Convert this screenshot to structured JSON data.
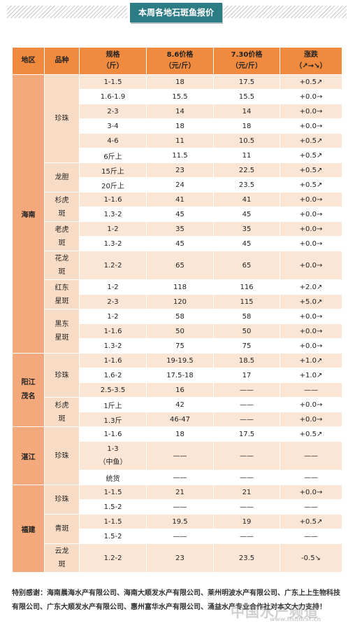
{
  "header": {
    "title": "本周各地石斑鱼报价"
  },
  "table": {
    "columns": [
      {
        "label": "地区"
      },
      {
        "label": "品种"
      },
      {
        "label": "规格\n（斤）"
      },
      {
        "label": "8.6价格\n（元/斤）"
      },
      {
        "label": "7.30价格\n（元/斤）"
      },
      {
        "label": "涨跌\n（↗→↘）"
      }
    ],
    "regions": [
      {
        "name": "海南",
        "varieties": [
          {
            "name": "珍珠",
            "rows": [
              {
                "spec": "1-1.5",
                "p1": "18",
                "p2": "17.5",
                "chg": "+0.5↗",
                "dir": "up"
              },
              {
                "spec": "1.6-1.9",
                "p1": "15.5",
                "p2": "15.5",
                "chg": "+0.0→",
                "dir": "flat"
              },
              {
                "spec": "2-3",
                "p1": "14",
                "p2": "14",
                "chg": "+0.0→",
                "dir": "flat"
              },
              {
                "spec": "3-4",
                "p1": "18",
                "p2": "18",
                "chg": "+0.0→",
                "dir": "flat"
              },
              {
                "spec": "4-6",
                "p1": "11",
                "p2": "10.5",
                "chg": "+0.5↗",
                "dir": "up"
              },
              {
                "spec": "6斤上",
                "p1": "11.5",
                "p2": "11",
                "chg": "+0.5↗",
                "dir": "up"
              }
            ]
          },
          {
            "name": "龙胆",
            "rows": [
              {
                "spec": "15斤上",
                "p1": "23",
                "p2": "22.5",
                "chg": "+0.5↗",
                "dir": "up"
              },
              {
                "spec": "20斤上",
                "p1": "24",
                "p2": "23.5",
                "chg": "+0.5↗",
                "dir": "up"
              }
            ]
          },
          {
            "name": "杉虎斑",
            "rows": [
              {
                "spec": "1-1.6",
                "p1": "41",
                "p2": "41",
                "chg": "+0.0→",
                "dir": "flat"
              },
              {
                "spec": "1.3-2",
                "p1": "45",
                "p2": "45",
                "chg": "+0.0→",
                "dir": "flat"
              }
            ]
          },
          {
            "name": "老虎斑",
            "rows": [
              {
                "spec": "1-2",
                "p1": "35",
                "p2": "35",
                "chg": "+0.0→",
                "dir": "flat"
              },
              {
                "spec": "1.3-2",
                "p1": "45",
                "p2": "45",
                "chg": "+0.0→",
                "dir": "flat"
              }
            ]
          },
          {
            "name": "花龙斑",
            "rows": [
              {
                "spec": "1.2-2",
                "p1": "65",
                "p2": "65",
                "chg": "+0.0→",
                "dir": "flat",
                "tall": true
              }
            ]
          },
          {
            "name": "红东星斑",
            "rows": [
              {
                "spec": "1-2",
                "p1": "118",
                "p2": "116",
                "chg": "+2.0↗",
                "dir": "up"
              },
              {
                "spec": "2-3",
                "p1": "120",
                "p2": "115",
                "chg": "+5.0↗",
                "dir": "up"
              }
            ]
          },
          {
            "name": "黑东星斑",
            "rows": [
              {
                "spec": "1-2",
                "p1": "58",
                "p2": "58",
                "chg": "+0.0→",
                "dir": "flat"
              },
              {
                "spec": "1-1.6",
                "p1": "50",
                "p2": "50",
                "chg": "+0.0→",
                "dir": "flat"
              },
              {
                "spec": "1.3-2",
                "p1": "75",
                "p2": "75",
                "chg": "+0.0→",
                "dir": "flat"
              }
            ]
          }
        ]
      },
      {
        "name": "阳江茂名",
        "varieties": [
          {
            "name": "珍珠",
            "rows": [
              {
                "spec": "1-1.6",
                "p1": "19-19.5",
                "p2": "18.5",
                "chg": "+1.0↗",
                "dir": "up"
              },
              {
                "spec": "1.6-2",
                "p1": "17.5-18",
                "p2": "17",
                "chg": "+1.0↗",
                "dir": "up"
              },
              {
                "spec": "2.5-3.5",
                "p1": "16",
                "p2": "——",
                "chg": "——",
                "dir": "flat"
              }
            ]
          },
          {
            "name": "杉虎斑",
            "rows": [
              {
                "spec": "1斤上",
                "p1": "42",
                "p2": "——",
                "chg": "+0.0→",
                "dir": "flat"
              },
              {
                "spec": "1.3斤",
                "p1": "46-47",
                "p2": "——",
                "chg": "+0.0→",
                "dir": "flat"
              }
            ]
          }
        ]
      },
      {
        "name": "湛江",
        "varieties": [
          {
            "name": "珍珠",
            "rows": [
              {
                "spec": "1-1.6",
                "p1": "18",
                "p2": "17.5",
                "chg": "+0.5↗",
                "dir": "up"
              },
              {
                "spec": "1-3\n（中鱼）",
                "p1": "——",
                "p2": "——",
                "chg": "——",
                "dir": "flat",
                "tall": true
              },
              {
                "spec": "统货",
                "p1": "——",
                "p2": "——",
                "chg": "——",
                "dir": "flat"
              }
            ]
          }
        ]
      },
      {
        "name": "福建",
        "varieties": [
          {
            "name": "珍珠",
            "rows": [
              {
                "spec": "1-1.5",
                "p1": "21",
                "p2": "21",
                "chg": "+0.0→",
                "dir": "flat"
              },
              {
                "spec": "1.5-2",
                "p1": "——",
                "p2": "——",
                "chg": "——",
                "dir": "flat"
              }
            ]
          },
          {
            "name": "青斑",
            "rows": [
              {
                "spec": "1-1.5",
                "p1": "19.5",
                "p2": "19",
                "chg": "+0.5↗",
                "dir": "up"
              },
              {
                "spec": "1.5-2",
                "p1": "——",
                "p2": "——",
                "chg": "——",
                "dir": "flat"
              }
            ]
          },
          {
            "name": "云龙斑",
            "rows": [
              {
                "spec": "1.2-2",
                "p1": "23",
                "p2": "23.5",
                "chg": "-0.5↘",
                "dir": "down",
                "tall": true
              }
            ]
          }
        ]
      }
    ]
  },
  "footer": {
    "thanks": "特别感谢：海南晨海水产有限公司、海南大顺发水产有限公司、莱州明波水产有限公司、广东上上生物科技有限公司、广东大顺发水产有限公司、惠州富华水产有限公司、涌益水产专业合作社对本文大力支持！",
    "watermark": "中国水产频道",
    "watermark_url": "www.fishfirst.cn"
  },
  "colors": {
    "banner": "#2c7c86",
    "header_row": "#ef8a3e",
    "region_cell": "#f3a97c",
    "variety_cell": "#f8dcc6",
    "row_alt": "#fbe6d6",
    "up": "#e0284a",
    "down": "#19a06a"
  }
}
